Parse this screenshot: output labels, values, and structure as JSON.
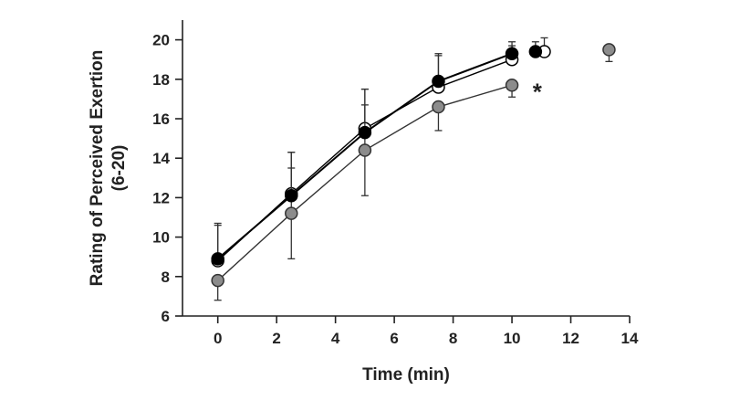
{
  "chart_data": {
    "type": "line",
    "xlabel": "Time (min)",
    "ylabel": [
      "Rating of Perceived Exertion",
      "(6-20)"
    ],
    "xlim": [
      -1.2,
      14
    ],
    "ylim": [
      6,
      21
    ],
    "xticks": [
      0,
      2,
      4,
      6,
      8,
      10,
      12,
      14
    ],
    "yticks": [
      6,
      8,
      10,
      12,
      14,
      16,
      18,
      20
    ],
    "grid": false,
    "legend": "none",
    "series": [
      {
        "color": "#000000",
        "stroke": "#000000",
        "marker": "filled-circle",
        "x": [
          0,
          2.5,
          5,
          7.5,
          10
        ],
        "y": [
          8.9,
          12.1,
          15.3,
          17.9,
          19.3
        ],
        "err": [
          1.8,
          2.2,
          2.2,
          1.4,
          0.6
        ],
        "end_point": {
          "x": 10.8,
          "y": 19.4,
          "err": 0.5
        }
      },
      {
        "color": "#ffffff",
        "stroke": "#000000",
        "marker": "open-circle",
        "x": [
          0,
          2.5,
          5,
          7.5,
          10
        ],
        "y": [
          8.8,
          12.2,
          15.5,
          17.6,
          19.0
        ],
        "err": [
          1.8,
          2.1,
          2.0,
          1.6,
          0.7
        ],
        "end_point": {
          "x": 11.1,
          "y": 19.4,
          "err": 0.7
        }
      },
      {
        "color": "#8c8c8c",
        "stroke": "#333333",
        "marker": "gray-circle",
        "x": [
          0,
          2.5,
          5,
          7.5,
          10
        ],
        "y": [
          7.8,
          11.2,
          14.4,
          16.6,
          17.7
        ],
        "err": [
          1.0,
          2.3,
          2.3,
          1.2,
          0.6
        ],
        "end_point": {
          "x": 13.3,
          "y": 19.5,
          "err": 0.6
        }
      }
    ],
    "annotations": [
      {
        "text": "*",
        "x": 10.8,
        "y": 17.6
      }
    ]
  }
}
